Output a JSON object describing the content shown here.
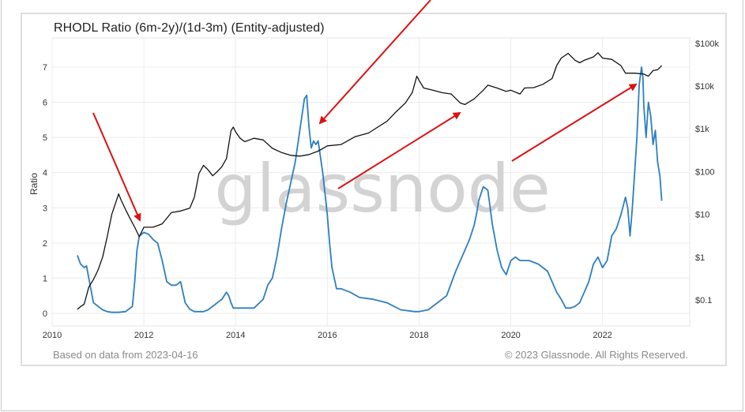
{
  "chart_data": {
    "type": "line",
    "title": "RHODL Ratio (6m-2y)/(1d-3m) (Entity-adjusted)",
    "ylabel": "Ratio",
    "ylim": [
      0,
      7.6
    ],
    "y_ticks": [
      "0",
      "1",
      "2",
      "3",
      "4",
      "5",
      "6",
      "7"
    ],
    "x_ticks": [
      "2010",
      "2012",
      "2014",
      "2016",
      "2018",
      "2020",
      "2022"
    ],
    "xlim": [
      2010.0,
      2023.9
    ],
    "y2_ticks": [
      "$0.1",
      "$1",
      "$10",
      "$100",
      "$1k",
      "$10k",
      "$100k"
    ],
    "y2_scale": "log",
    "grid": true,
    "watermark": "glassnode",
    "source_note": "Based on data from 2023-04-16",
    "copyright": "© 2023 Glassnode. All Rights Reserved.",
    "colors": {
      "ratio": "#2e7fc0",
      "price": "#111111",
      "arrow": "#dd1111",
      "grid": "#ececec"
    },
    "series": [
      {
        "axis": "left",
        "color": "#2e7fc0",
        "x": [
          2010.55,
          2010.62,
          2010.7,
          2010.75,
          2010.8,
          2010.9,
          2011.0,
          2011.1,
          2011.2,
          2011.3,
          2011.45,
          2011.6,
          2011.75,
          2011.8,
          2011.85,
          2011.9,
          2012.0,
          2012.1,
          2012.2,
          2012.3,
          2012.4,
          2012.5,
          2012.6,
          2012.7,
          2012.8,
          2012.9,
          2013.0,
          2013.1,
          2013.2,
          2013.3,
          2013.4,
          2013.5,
          2013.6,
          2013.7,
          2013.8,
          2013.85,
          2013.9,
          2013.95,
          2014.0,
          2014.2,
          2014.4,
          2014.6,
          2014.7,
          2014.8,
          2014.9,
          2015.0,
          2015.1,
          2015.2,
          2015.3,
          2015.4,
          2015.5,
          2015.55,
          2015.6,
          2015.65,
          2015.7,
          2015.75,
          2015.8,
          2015.9,
          2016.0,
          2016.05,
          2016.1,
          2016.15,
          2016.2,
          2016.3,
          2016.5,
          2016.7,
          2017.0,
          2017.3,
          2017.6,
          2017.9,
          2018.0,
          2018.2,
          2018.4,
          2018.6,
          2018.8,
          2019.0,
          2019.1,
          2019.2,
          2019.25,
          2019.3,
          2019.4,
          2019.5,
          2019.6,
          2019.7,
          2019.8,
          2019.9,
          2020.0,
          2020.1,
          2020.2,
          2020.4,
          2020.6,
          2020.8,
          2020.9,
          2021.0,
          2021.1,
          2021.2,
          2021.3,
          2021.4,
          2021.5,
          2021.6,
          2021.7,
          2021.8,
          2021.9,
          2022.0,
          2022.1,
          2022.2,
          2022.3,
          2022.4,
          2022.5,
          2022.55,
          2022.6,
          2022.65,
          2022.7,
          2022.75,
          2022.8,
          2022.85,
          2022.88,
          2022.9,
          2022.95,
          2023.0,
          2023.05,
          2023.1,
          2023.15,
          2023.2,
          2023.25,
          2023.29
        ],
        "y": [
          1.65,
          1.4,
          1.3,
          1.35,
          1.0,
          0.3,
          0.2,
          0.1,
          0.05,
          0.03,
          0.03,
          0.05,
          0.2,
          0.9,
          1.8,
          2.2,
          2.3,
          2.25,
          2.1,
          2.0,
          1.5,
          0.9,
          0.8,
          0.8,
          0.9,
          0.3,
          0.12,
          0.05,
          0.05,
          0.05,
          0.1,
          0.2,
          0.3,
          0.4,
          0.6,
          0.5,
          0.3,
          0.15,
          0.15,
          0.15,
          0.15,
          0.4,
          0.8,
          1.0,
          1.6,
          2.4,
          3.1,
          3.7,
          4.3,
          5.2,
          6.1,
          6.2,
          5.3,
          4.7,
          4.9,
          4.8,
          4.9,
          4.0,
          2.8,
          2.0,
          1.3,
          1.0,
          0.7,
          0.7,
          0.6,
          0.45,
          0.4,
          0.3,
          0.1,
          0.05,
          0.05,
          0.1,
          0.3,
          0.5,
          1.2,
          1.8,
          2.1,
          2.5,
          2.8,
          3.2,
          3.6,
          3.5,
          2.5,
          1.8,
          1.3,
          1.1,
          1.5,
          1.6,
          1.5,
          1.5,
          1.4,
          1.2,
          0.9,
          0.6,
          0.4,
          0.15,
          0.15,
          0.2,
          0.3,
          0.6,
          0.9,
          1.4,
          1.6,
          1.3,
          1.5,
          2.2,
          2.4,
          2.8,
          3.3,
          3.0,
          2.2,
          3.0,
          4.0,
          5.0,
          6.5,
          7.0,
          6.7,
          5.9,
          5.0,
          6.0,
          5.6,
          4.8,
          5.2,
          4.3,
          3.9,
          3.2
        ]
      },
      {
        "axis": "right",
        "color": "#111111",
        "x": [
          2010.55,
          2010.62,
          2010.7,
          2010.8,
          2010.9,
          2011.0,
          2011.1,
          2011.2,
          2011.3,
          2011.45,
          2011.5,
          2011.6,
          2011.7,
          2011.8,
          2011.9,
          2012.0,
          2012.2,
          2012.4,
          2012.6,
          2012.8,
          2013.0,
          2013.1,
          2013.2,
          2013.3,
          2013.4,
          2013.5,
          2013.6,
          2013.7,
          2013.8,
          2013.9,
          2013.95,
          2014.0,
          2014.1,
          2014.2,
          2014.4,
          2014.6,
          2014.8,
          2015.0,
          2015.2,
          2015.4,
          2015.6,
          2015.8,
          2016.0,
          2016.3,
          2016.6,
          2016.9,
          2017.1,
          2017.3,
          2017.5,
          2017.7,
          2017.85,
          2017.95,
          2018.0,
          2018.1,
          2018.3,
          2018.5,
          2018.7,
          2018.9,
          2019.0,
          2019.2,
          2019.4,
          2019.5,
          2019.7,
          2019.9,
          2020.0,
          2020.2,
          2020.3,
          2020.5,
          2020.7,
          2020.9,
          2021.0,
          2021.1,
          2021.25,
          2021.4,
          2021.5,
          2021.6,
          2021.8,
          2021.9,
          2022.0,
          2022.2,
          2022.4,
          2022.5,
          2022.7,
          2022.9,
          2023.0,
          2023.1,
          2023.2,
          2023.29
        ],
        "y": [
          0.06,
          0.07,
          0.08,
          0.2,
          0.3,
          0.5,
          1.0,
          3.0,
          10.0,
          30.0,
          22.0,
          13.0,
          8.0,
          5.0,
          3.0,
          5.0,
          5.0,
          6.0,
          11.0,
          12.0,
          14.0,
          25.0,
          90.0,
          140.0,
          110.0,
          80.0,
          100.0,
          130.0,
          200.0,
          900.0,
          1100.0,
          850.0,
          600.0,
          500.0,
          600.0,
          550.0,
          350.0,
          280.0,
          240.0,
          230.0,
          250.0,
          300.0,
          400.0,
          430.0,
          650.0,
          800.0,
          1100.0,
          1500.0,
          2500.0,
          4000.0,
          7000.0,
          17000.0,
          13500.0,
          9000.0,
          8000.0,
          7000.0,
          6500.0,
          4000.0,
          3700.0,
          5000.0,
          8000.0,
          10500.0,
          9000.0,
          7500.0,
          8000.0,
          6500.0,
          9000.0,
          9200.0,
          11000.0,
          15000.0,
          30000.0,
          45000.0,
          58000.0,
          40000.0,
          35000.0,
          40000.0,
          48000.0,
          60000.0,
          45000.0,
          42000.0,
          30000.0,
          20000.0,
          20000.0,
          19000.0,
          17000.0,
          23000.0,
          24000.0,
          30000.0
        ]
      }
    ]
  }
}
